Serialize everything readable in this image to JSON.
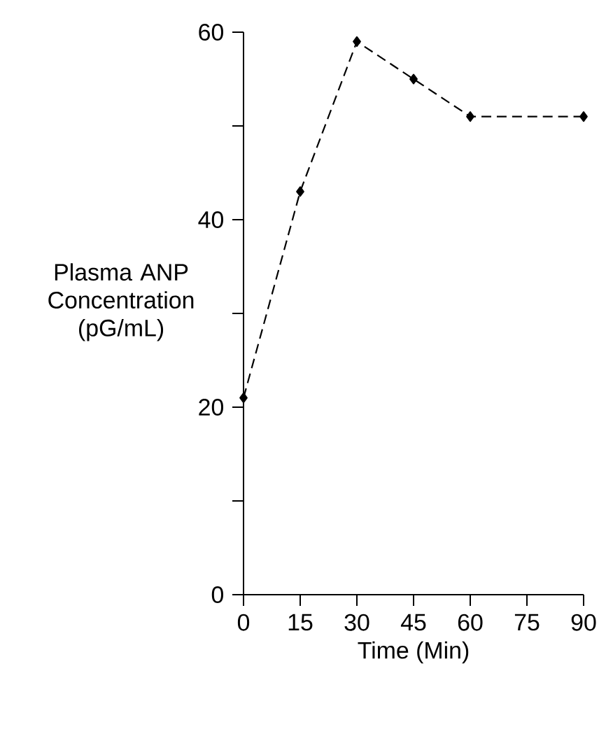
{
  "chart_data": {
    "type": "line",
    "xlabel": "Time (Min)",
    "ylabel": "Plasma ANP Concentration (pG/mL)",
    "x": [
      0,
      15,
      30,
      45,
      60,
      90
    ],
    "series": [
      {
        "color": "#000000",
        "values": [
          21,
          43,
          59,
          55,
          51,
          51
        ]
      }
    ],
    "xlim": [
      0,
      90
    ],
    "xticks": [
      0,
      15,
      30,
      45,
      60,
      75,
      90
    ],
    "ylim": [
      0,
      60
    ],
    "yticks": [
      0,
      {
        "value": 10,
        "label": null
      },
      20,
      {
        "value": 30,
        "label": null
      },
      40,
      {
        "value": 50,
        "label": null
      },
      60
    ],
    "grid": false,
    "marker": "diamond",
    "line_style": "dashed"
  }
}
